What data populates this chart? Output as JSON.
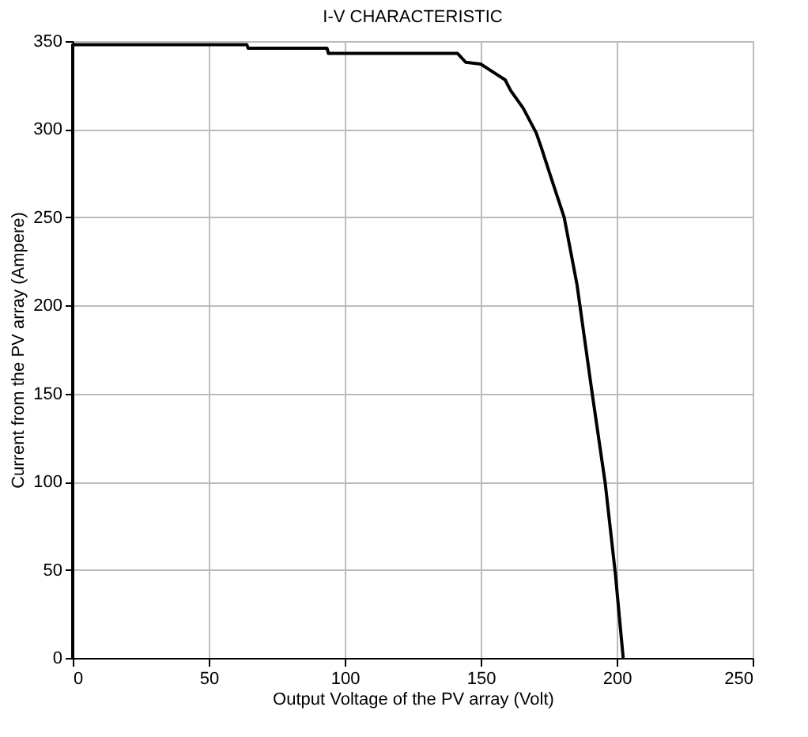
{
  "chart_data": {
    "type": "line",
    "title": "I-V CHARACTERISTIC",
    "xlabel": "Output Voltage of the PV array (Volt)",
    "ylabel": "Current from the PV array (Ampere)",
    "x": [
      0,
      0,
      1,
      64,
      64.5,
      93.5,
      94,
      141.5,
      144.5,
      150,
      155,
      159,
      161,
      165.6,
      170.4,
      172.2,
      176,
      180.7,
      185.4,
      191,
      195.8,
      199.5,
      202.4
    ],
    "series": [
      {
        "color": "#000000",
        "values": [
          0,
          348,
          348,
          348,
          346,
          346,
          343,
          343,
          338,
          337,
          332,
          328,
          322,
          312,
          298,
          290,
          272,
          250,
          212,
          150,
          99,
          48,
          0
        ]
      }
    ],
    "xlim": [
      0,
      250
    ],
    "xticks": [
      0,
      50,
      100,
      150,
      200,
      250
    ],
    "ylim": [
      0,
      350
    ],
    "yticks": [
      0,
      50,
      100,
      150,
      200,
      250,
      300,
      350
    ],
    "grid": true,
    "line_style": "solid",
    "marker": "none"
  }
}
